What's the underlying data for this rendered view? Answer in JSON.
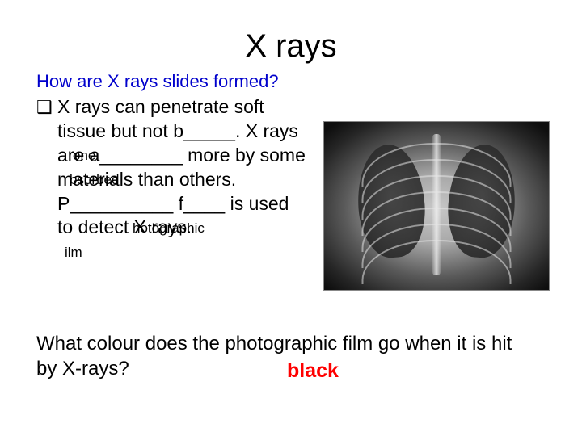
{
  "title": "X rays",
  "subtitle": "How are X rays slides formed?",
  "bullet_symbol": "❑",
  "body": "X rays can penetrate soft tissue but not b_____. X rays are a________ more by some materials than others. P__________ f____ is used to detect  X rays.",
  "fills": {
    "one": "one",
    "bsorbed": "bsorbed",
    "hotographic": "hotographic",
    "ilm": "ilm"
  },
  "question": "What colour does the photographic film go when it is hit by X-rays?",
  "answer": "black",
  "colors": {
    "subtitle": "#0000cc",
    "answer": "#ff0000",
    "text": "#000000",
    "background": "#ffffff"
  },
  "xray": {
    "rib_count": 7,
    "rib_top_start": 26,
    "rib_spacing": 20
  }
}
